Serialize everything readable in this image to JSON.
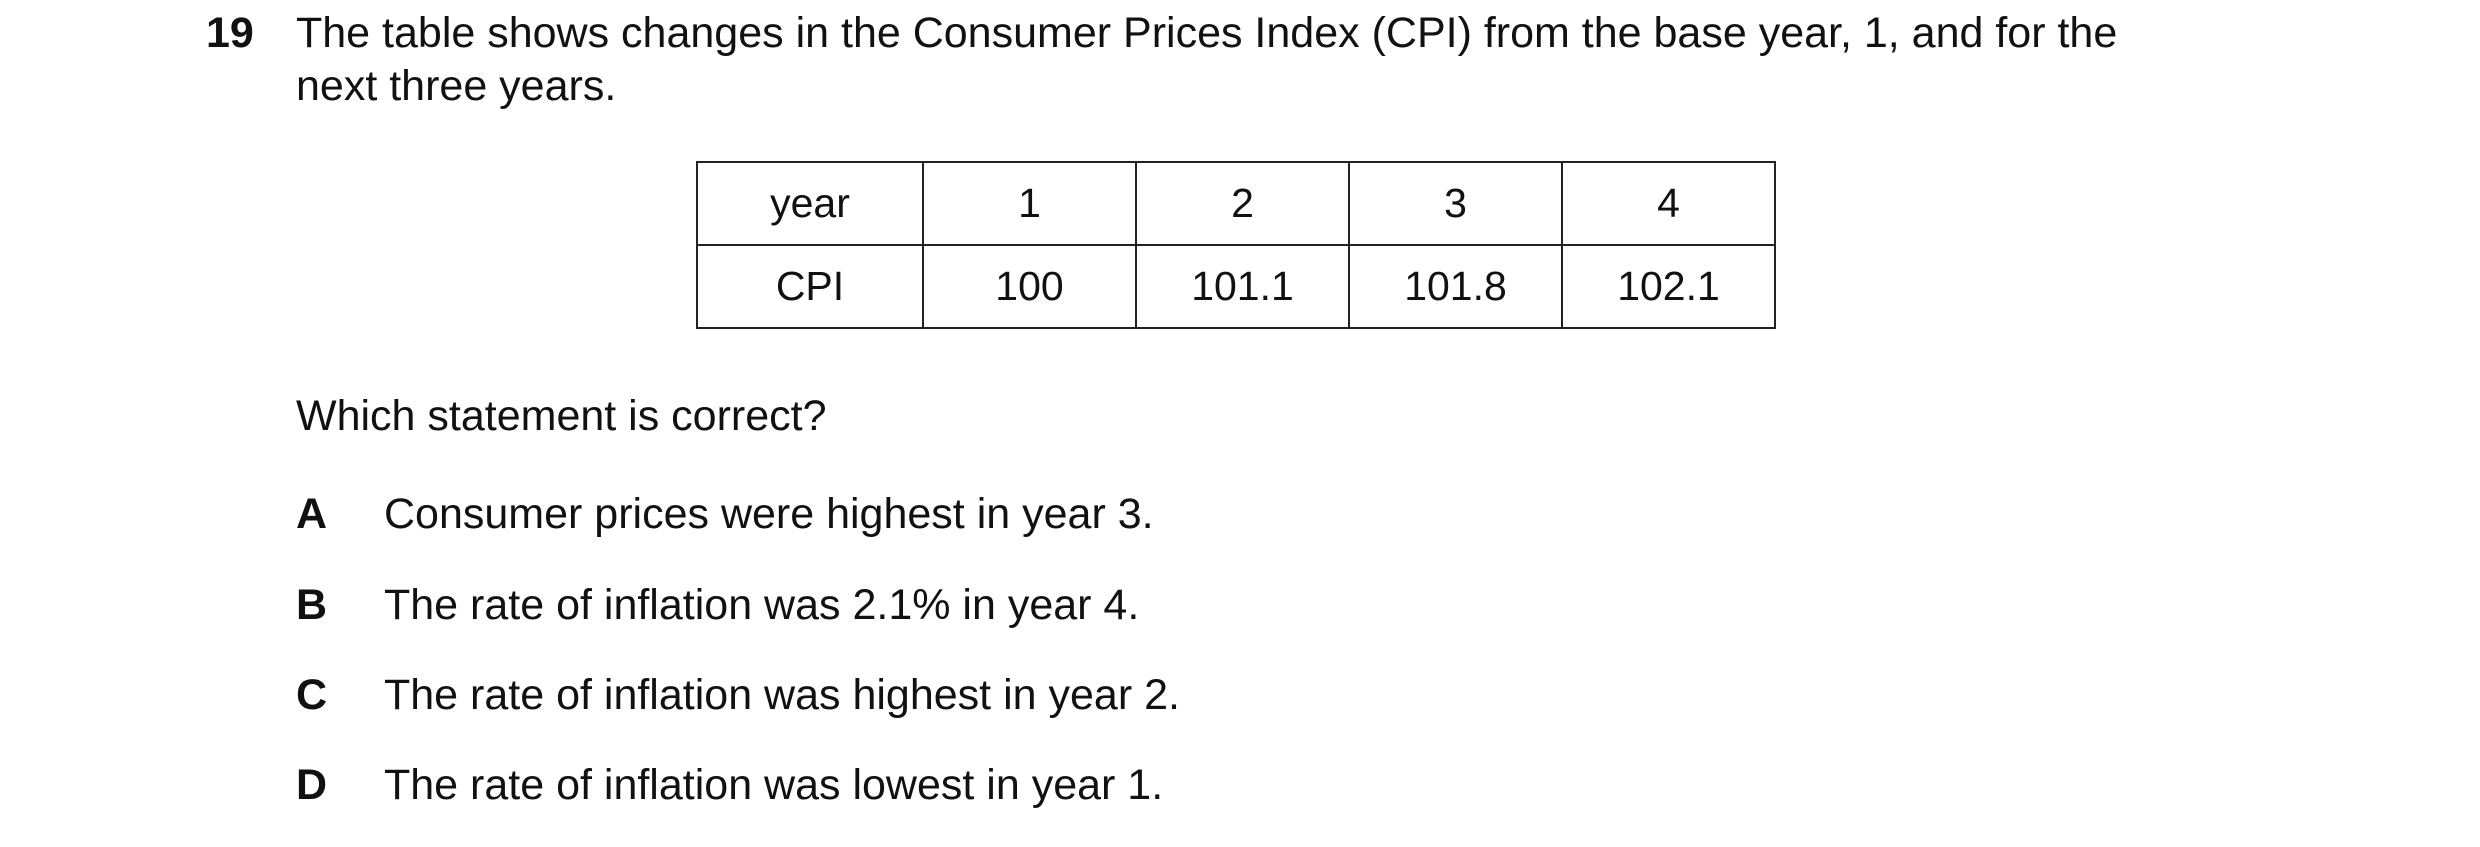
{
  "question": {
    "number": "19",
    "text_lines": [
      "The table shows changes in the Consumer Prices Index (CPI) from the base year, 1, and for the",
      "next three years."
    ],
    "table": {
      "rows": [
        [
          "year",
          1,
          2,
          3,
          4
        ],
        [
          "CPI",
          100,
          101.1,
          101.8,
          102.1
        ]
      ]
    },
    "prompt": "Which statement is correct?",
    "options": [
      {
        "letter": "A",
        "text": "Consumer prices were highest in year 3."
      },
      {
        "letter": "B",
        "text": "The rate of inflation was 2.1% in year 4."
      },
      {
        "letter": "C",
        "text": "The rate of inflation was highest in year 2."
      },
      {
        "letter": "D",
        "text": "The rate of inflation was lowest in year 1."
      }
    ]
  }
}
